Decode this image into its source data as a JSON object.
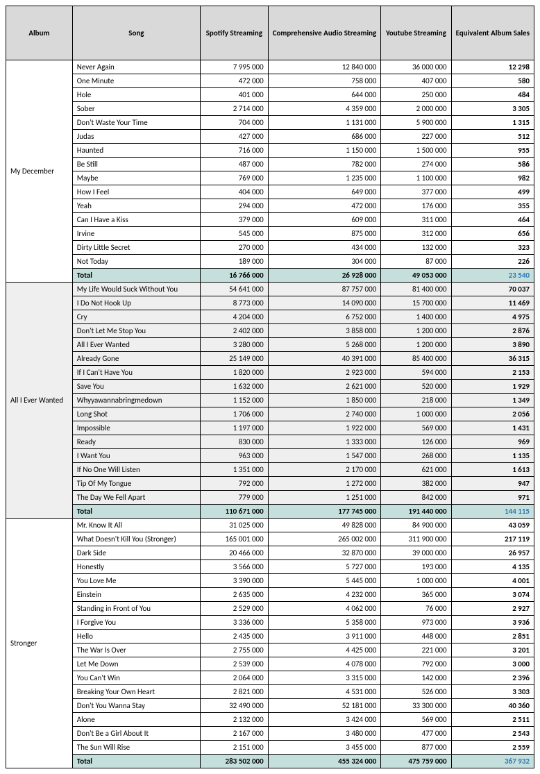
{
  "columns": {
    "album": "Album",
    "song": "Song",
    "spotify": "Spotify\nStreaming",
    "audio": "Comprehensive\nAudio\nStreaming",
    "youtube": "Youtube\nStreaming",
    "eas": "Equivalent\nAlbum Sales"
  },
  "colors": {
    "header_bg": "#d9d9d9",
    "alt_bg": "#efefef",
    "total_bg": "#c5e0dc",
    "total_eas_text": "#2e75b6",
    "border": "#000000",
    "white": "#ffffff"
  },
  "albums": [
    {
      "name": "My December",
      "alt": false,
      "songs": [
        {
          "t": "Never Again",
          "s": "7 995 000",
          "a": "12 840 000",
          "y": "36 000 000",
          "e": "12 298"
        },
        {
          "t": "One Minute",
          "s": "472 000",
          "a": "758 000",
          "y": "407 000",
          "e": "580"
        },
        {
          "t": "Hole",
          "s": "401 000",
          "a": "644 000",
          "y": "250 000",
          "e": "484"
        },
        {
          "t": "Sober",
          "s": "2 714 000",
          "a": "4 359 000",
          "y": "2 000 000",
          "e": "3 305"
        },
        {
          "t": "Don't Waste Your Time",
          "s": "704 000",
          "a": "1 131 000",
          "y": "5 900 000",
          "e": "1 315"
        },
        {
          "t": "Judas",
          "s": "427 000",
          "a": "686 000",
          "y": "227 000",
          "e": "512"
        },
        {
          "t": "Haunted",
          "s": "716 000",
          "a": "1 150 000",
          "y": "1 500 000",
          "e": "955"
        },
        {
          "t": "Be Still",
          "s": "487 000",
          "a": "782 000",
          "y": "274 000",
          "e": "586"
        },
        {
          "t": "Maybe",
          "s": "769 000",
          "a": "1 235 000",
          "y": "1 100 000",
          "e": "982"
        },
        {
          "t": "How I Feel",
          "s": "404 000",
          "a": "649 000",
          "y": "377 000",
          "e": "499"
        },
        {
          "t": "Yeah",
          "s": "294 000",
          "a": "472 000",
          "y": "176 000",
          "e": "355"
        },
        {
          "t": "Can I Have a Kiss",
          "s": "379 000",
          "a": "609 000",
          "y": "311 000",
          "e": "464"
        },
        {
          "t": "Irvine",
          "s": "545 000",
          "a": "875 000",
          "y": "312 000",
          "e": "656"
        },
        {
          "t": "Dirty Little Secret",
          "s": "270 000",
          "a": "434 000",
          "y": "132 000",
          "e": "323"
        },
        {
          "t": "Not Today",
          "s": "189 000",
          "a": "304 000",
          "y": "87 000",
          "e": "226"
        }
      ],
      "total": {
        "t": "Total",
        "s": "16 766 000",
        "a": "26 928 000",
        "y": "49 053 000",
        "e": "23 540"
      }
    },
    {
      "name": "All I Ever Wanted",
      "alt": true,
      "songs": [
        {
          "t": "My Life Would Suck Without You",
          "s": "54 641 000",
          "a": "87 757 000",
          "y": "81 400 000",
          "e": "70 037"
        },
        {
          "t": "I Do Not Hook Up",
          "s": "8 773 000",
          "a": "14 090 000",
          "y": "15 700 000",
          "e": "11 469"
        },
        {
          "t": "Cry",
          "s": "4 204 000",
          "a": "6 752 000",
          "y": "1 400 000",
          "e": "4 975"
        },
        {
          "t": "Don't Let Me Stop You",
          "s": "2 402 000",
          "a": "3 858 000",
          "y": "1 200 000",
          "e": "2 876"
        },
        {
          "t": "All I Ever Wanted",
          "s": "3 280 000",
          "a": "5 268 000",
          "y": "1 200 000",
          "e": "3 890"
        },
        {
          "t": "Already Gone",
          "s": "25 149 000",
          "a": "40 391 000",
          "y": "85 400 000",
          "e": "36 315"
        },
        {
          "t": "If I Can't Have You",
          "s": "1 820 000",
          "a": "2 923 000",
          "y": "594 000",
          "e": "2 153"
        },
        {
          "t": "Save You",
          "s": "1 632 000",
          "a": "2 621 000",
          "y": "520 000",
          "e": "1 929"
        },
        {
          "t": "Whyyawannabringmedown",
          "s": "1 152 000",
          "a": "1 850 000",
          "y": "218 000",
          "e": "1 349"
        },
        {
          "t": "Long Shot",
          "s": "1 706 000",
          "a": "2 740 000",
          "y": "1 000 000",
          "e": "2 056"
        },
        {
          "t": "Impossible",
          "s": "1 197 000",
          "a": "1 922 000",
          "y": "569 000",
          "e": "1 431"
        },
        {
          "t": "Ready",
          "s": "830 000",
          "a": "1 333 000",
          "y": "126 000",
          "e": "969"
        },
        {
          "t": "I Want You",
          "s": "963 000",
          "a": "1 547 000",
          "y": "268 000",
          "e": "1 135"
        },
        {
          "t": "If No One Will Listen",
          "s": "1 351 000",
          "a": "2 170 000",
          "y": "621 000",
          "e": "1 613"
        },
        {
          "t": "Tip Of My Tongue",
          "s": "792 000",
          "a": "1 272 000",
          "y": "382 000",
          "e": "947"
        },
        {
          "t": "The Day We Fell Apart",
          "s": "779 000",
          "a": "1 251 000",
          "y": "842 000",
          "e": "971"
        }
      ],
      "total": {
        "t": "Total",
        "s": "110 671 000",
        "a": "177 745 000",
        "y": "191 440 000",
        "e": "144 115"
      }
    },
    {
      "name": "Stronger",
      "alt": false,
      "songs": [
        {
          "t": "Mr. Know It All",
          "s": "31 025 000",
          "a": "49 828 000",
          "y": "84 900 000",
          "e": "43 059"
        },
        {
          "t": "What Doesn't Kill You (Stronger)",
          "s": "165 001 000",
          "a": "265 002 000",
          "y": "311 900 000",
          "e": "217 119"
        },
        {
          "t": "Dark Side",
          "s": "20 466 000",
          "a": "32 870 000",
          "y": "39 000 000",
          "e": "26 957"
        },
        {
          "t": "Honestly",
          "s": "3 566 000",
          "a": "5 727 000",
          "y": "193 000",
          "e": "4 135"
        },
        {
          "t": "You Love Me",
          "s": "3 390 000",
          "a": "5 445 000",
          "y": "1 000 000",
          "e": "4 001"
        },
        {
          "t": "Einstein",
          "s": "2 635 000",
          "a": "4 232 000",
          "y": "365 000",
          "e": "3 074"
        },
        {
          "t": "Standing in Front of You",
          "s": "2 529 000",
          "a": "4 062 000",
          "y": "76 000",
          "e": "2 927"
        },
        {
          "t": "I Forgive You",
          "s": "3 336 000",
          "a": "5 358 000",
          "y": "973 000",
          "e": "3 936"
        },
        {
          "t": "Hello",
          "s": "2 435 000",
          "a": "3 911 000",
          "y": "448 000",
          "e": "2 851"
        },
        {
          "t": "The War Is Over",
          "s": "2 755 000",
          "a": "4 425 000",
          "y": "221 000",
          "e": "3 201"
        },
        {
          "t": "Let Me Down",
          "s": "2 539 000",
          "a": "4 078 000",
          "y": "792 000",
          "e": "3 000"
        },
        {
          "t": "You Can't Win",
          "s": "2 064 000",
          "a": "3 315 000",
          "y": "142 000",
          "e": "2 396"
        },
        {
          "t": "Breaking Your Own Heart",
          "s": "2 821 000",
          "a": "4 531 000",
          "y": "526 000",
          "e": "3 303"
        },
        {
          "t": "Don't You Wanna Stay",
          "s": "32 490 000",
          "a": "52 181 000",
          "y": "33 300 000",
          "e": "40 360"
        },
        {
          "t": "Alone",
          "s": "2 132 000",
          "a": "3 424 000",
          "y": "569 000",
          "e": "2 511"
        },
        {
          "t": "Don't Be a Girl About It",
          "s": "2 167 000",
          "a": "3 480 000",
          "y": "477 000",
          "e": "2 543"
        },
        {
          "t": "The Sun Will Rise",
          "s": "2 151 000",
          "a": "3 455 000",
          "y": "877 000",
          "e": "2 559"
        }
      ],
      "total": {
        "t": "Total",
        "s": "283 502 000",
        "a": "455 324 000",
        "y": "475 759 000",
        "e": "367 932"
      }
    }
  ]
}
